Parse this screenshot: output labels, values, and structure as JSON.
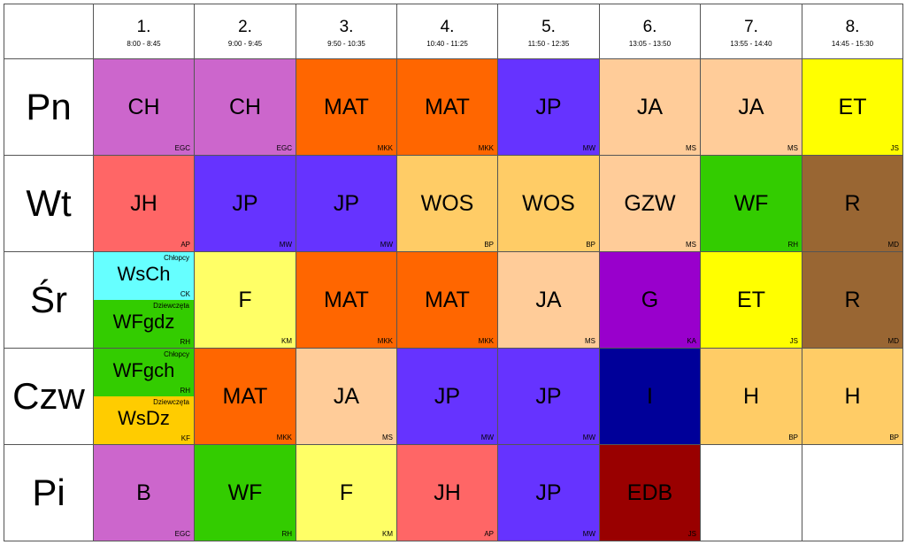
{
  "periods": [
    {
      "num": "1.",
      "time": "8:00 - 8:45"
    },
    {
      "num": "2.",
      "time": "9:00 - 9:45"
    },
    {
      "num": "3.",
      "time": "9:50 - 10:35"
    },
    {
      "num": "4.",
      "time": "10:40 - 11:25"
    },
    {
      "num": "5.",
      "time": "11:50 - 12:35"
    },
    {
      "num": "6.",
      "time": "13:05 - 13:50"
    },
    {
      "num": "7.",
      "time": "13:55 - 14:40"
    },
    {
      "num": "8.",
      "time": "14:45 - 15:30"
    }
  ],
  "days": [
    "Pn",
    "Wt",
    "Śr",
    "Czw",
    "Pi"
  ],
  "schedule": [
    [
      {
        "type": "lesson",
        "subject": "CH",
        "teacher": "EGC",
        "color": "#cc66cc"
      },
      {
        "type": "lesson",
        "subject": "CH",
        "teacher": "EGC",
        "color": "#cc66cc"
      },
      {
        "type": "lesson",
        "subject": "MAT",
        "teacher": "MKK",
        "color": "#ff6600"
      },
      {
        "type": "lesson",
        "subject": "MAT",
        "teacher": "MKK",
        "color": "#ff6600"
      },
      {
        "type": "lesson",
        "subject": "JP",
        "teacher": "MW",
        "color": "#6633ff"
      },
      {
        "type": "lesson",
        "subject": "JA",
        "teacher": "MS",
        "color": "#ffcc99"
      },
      {
        "type": "lesson",
        "subject": "JA",
        "teacher": "MS",
        "color": "#ffcc99"
      },
      {
        "type": "lesson",
        "subject": "ET",
        "teacher": "JS",
        "color": "#ffff00"
      }
    ],
    [
      {
        "type": "lesson",
        "subject": "JH",
        "teacher": "AP",
        "color": "#ff6666"
      },
      {
        "type": "lesson",
        "subject": "JP",
        "teacher": "MW",
        "color": "#6633ff"
      },
      {
        "type": "lesson",
        "subject": "JP",
        "teacher": "MW",
        "color": "#6633ff"
      },
      {
        "type": "lesson",
        "subject": "WOS",
        "teacher": "BP",
        "color": "#ffcc66"
      },
      {
        "type": "lesson",
        "subject": "WOS",
        "teacher": "BP",
        "color": "#ffcc66"
      },
      {
        "type": "lesson",
        "subject": "GZW",
        "teacher": "MS",
        "color": "#ffcc99"
      },
      {
        "type": "lesson",
        "subject": "WF",
        "teacher": "RH",
        "color": "#33cc00"
      },
      {
        "type": "lesson",
        "subject": "R",
        "teacher": "MD",
        "color": "#996633"
      }
    ],
    [
      {
        "type": "split",
        "top": {
          "group": "Chłopcy",
          "subject": "WsCh",
          "teacher": "CK",
          "color": "#66ffff"
        },
        "bottom": {
          "group": "Dziewczęta",
          "subject": "WFgdz",
          "teacher": "RH",
          "color": "#33cc00"
        }
      },
      {
        "type": "lesson",
        "subject": "F",
        "teacher": "KM",
        "color": "#ffff66"
      },
      {
        "type": "lesson",
        "subject": "MAT",
        "teacher": "MKK",
        "color": "#ff6600"
      },
      {
        "type": "lesson",
        "subject": "MAT",
        "teacher": "MKK",
        "color": "#ff6600"
      },
      {
        "type": "lesson",
        "subject": "JA",
        "teacher": "MS",
        "color": "#ffcc99"
      },
      {
        "type": "lesson",
        "subject": "G",
        "teacher": "KA",
        "color": "#9900cc"
      },
      {
        "type": "lesson",
        "subject": "ET",
        "teacher": "JS",
        "color": "#ffff00"
      },
      {
        "type": "lesson",
        "subject": "R",
        "teacher": "MD",
        "color": "#996633"
      }
    ],
    [
      {
        "type": "split",
        "top": {
          "group": "Chłopcy",
          "subject": "WFgch",
          "teacher": "RH",
          "color": "#33cc00"
        },
        "bottom": {
          "group": "Dziewczęta",
          "subject": "WsDz",
          "teacher": "KF",
          "color": "#ffcc00"
        }
      },
      {
        "type": "lesson",
        "subject": "MAT",
        "teacher": "MKK",
        "color": "#ff6600"
      },
      {
        "type": "lesson",
        "subject": "JA",
        "teacher": "MS",
        "color": "#ffcc99"
      },
      {
        "type": "lesson",
        "subject": "JP",
        "teacher": "MW",
        "color": "#6633ff"
      },
      {
        "type": "lesson",
        "subject": "JP",
        "teacher": "MW",
        "color": "#6633ff"
      },
      {
        "type": "lesson",
        "subject": "I",
        "teacher": "",
        "color": "#000099"
      },
      {
        "type": "lesson",
        "subject": "H",
        "teacher": "BP",
        "color": "#ffcc66"
      },
      {
        "type": "lesson",
        "subject": "H",
        "teacher": "BP",
        "color": "#ffcc66"
      }
    ],
    [
      {
        "type": "lesson",
        "subject": "B",
        "teacher": "EGC",
        "color": "#cc66cc"
      },
      {
        "type": "lesson",
        "subject": "WF",
        "teacher": "RH",
        "color": "#33cc00"
      },
      {
        "type": "lesson",
        "subject": "F",
        "teacher": "KM",
        "color": "#ffff66"
      },
      {
        "type": "lesson",
        "subject": "JH",
        "teacher": "AP",
        "color": "#ff6666"
      },
      {
        "type": "lesson",
        "subject": "JP",
        "teacher": "MW",
        "color": "#6633ff"
      },
      {
        "type": "lesson",
        "subject": "EDB",
        "teacher": "JS",
        "color": "#990000"
      },
      {
        "type": "empty"
      },
      {
        "type": "empty"
      }
    ]
  ]
}
